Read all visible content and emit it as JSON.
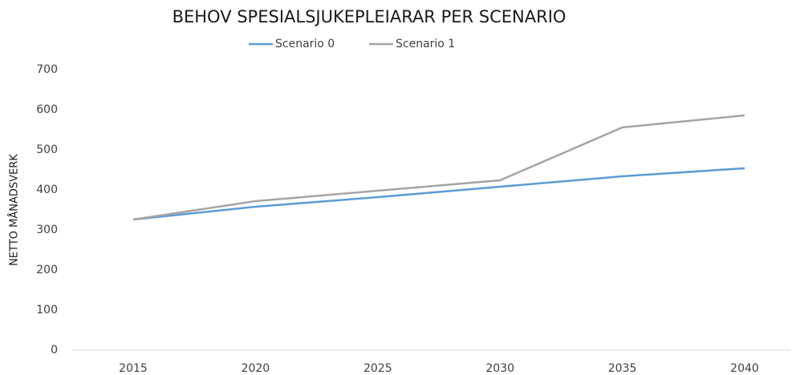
{
  "chart_data": {
    "type": "line",
    "title": "BEHOV SPESIALSJUKEPLEIARAR PER SCENARIO",
    "y_label": "NETTO MÅNADSVERK",
    "categories": [
      "2015",
      "2020",
      "2025",
      "2030",
      "2035",
      "2040"
    ],
    "series": [
      {
        "name": "Scenario 0",
        "color": "#5b9bd5",
        "values": [
          326,
          358,
          382,
          408,
          434,
          454
        ]
      },
      {
        "name": "Scenario 1",
        "color": "#a5a5a5",
        "values": [
          326,
          372,
          398,
          424,
          556,
          586
        ]
      }
    ],
    "ylim": [
      0,
      700
    ],
    "yticks": [
      0,
      100,
      200,
      300,
      400,
      500,
      600,
      700
    ],
    "grid": false,
    "legend": "top"
  }
}
